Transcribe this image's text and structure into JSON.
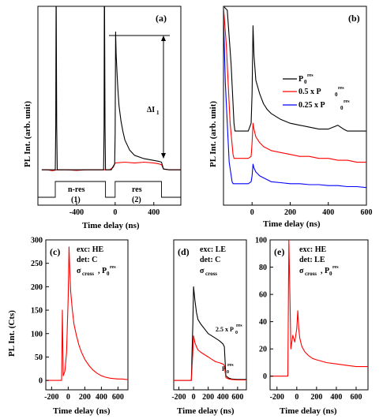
{
  "chart_data": [
    {
      "panel": "(a)",
      "type": "line",
      "xlabel": "Time delay (ns)",
      "ylabel": "PL Int. (arb. unit)",
      "xlim": [
        -800,
        680
      ],
      "ylim": [
        0,
        1
      ],
      "xticks": [
        -400,
        0,
        400
      ],
      "grid": false,
      "annotations": [
        "ΔI",
        "1",
        "n-res",
        "(1)",
        "res",
        "(2)"
      ],
      "series": [
        {
          "color": "#ff0000",
          "x": [
            -760,
            -700,
            -650,
            -600,
            -500,
            -400,
            -300,
            -200,
            -100,
            -60,
            -20,
            0,
            100,
            200,
            300,
            400,
            450,
            480,
            500,
            560,
            600,
            640,
            680
          ],
          "y": [
            0.045,
            0.045,
            0.04,
            0.045,
            0.045,
            0.042,
            0.045,
            0.045,
            0.045,
            0.045,
            0.06,
            0.085,
            0.09,
            0.085,
            0.09,
            0.085,
            0.08,
            0.075,
            0.05,
            0.045,
            0.045,
            0.045,
            0.045
          ]
        },
        {
          "color": "#000000",
          "x": [
            -760,
            -620,
            -615,
            -612,
            -610,
            -605,
            -600,
            -500,
            -400,
            -300,
            -200,
            -120,
            -115,
            -112,
            -110,
            -105,
            -100,
            -40,
            -5,
            0,
            5,
            10,
            20,
            30,
            40,
            60,
            80,
            100,
            150,
            200,
            250,
            300,
            400,
            450,
            480,
            500,
            560,
            600,
            680
          ],
          "y": [
            0.045,
            0.045,
            0.3,
            1.0,
            1.0,
            0.3,
            0.045,
            0.045,
            0.045,
            0.045,
            0.045,
            0.045,
            0.3,
            1.0,
            1.0,
            0.3,
            0.045,
            0.045,
            0.08,
            0.25,
            0.85,
            0.72,
            0.6,
            0.5,
            0.42,
            0.33,
            0.27,
            0.22,
            0.16,
            0.13,
            0.12,
            0.11,
            0.1,
            0.095,
            0.09,
            0.05,
            0.045,
            0.045,
            0.045
          ]
        }
      ],
      "gate": {
        "x": [
          -800,
          -620,
          -620,
          -100,
          -100,
          0,
          0,
          480,
          480,
          680
        ],
        "y": [
          0,
          0,
          1,
          1,
          0,
          0,
          1,
          1,
          0,
          0
        ]
      }
    },
    {
      "panel": "(b)",
      "type": "line",
      "xlabel": "Time delay (ns)",
      "ylabel": "PL Int. (arb. unit)",
      "xlim": [
        -150,
        600
      ],
      "ylim": [
        0,
        1
      ],
      "xticks": [
        0,
        200,
        400,
        600
      ],
      "grid": false,
      "legend_position": "right",
      "legend": [
        {
          "label": "P",
          "sub": "0",
          "sup": "res",
          "color": "#000000"
        },
        {
          "label": "0.5 x  P",
          "sub": "0",
          "sup": "res",
          "color": "#ff0000"
        },
        {
          "label": "0.25 x P",
          "sub": "0",
          "sup": "res",
          "color": "#0000ff"
        }
      ],
      "series": [
        {
          "name": "P0 res",
          "color": "#000000",
          "x": [
            -150,
            -130,
            -110,
            -95,
            -90,
            -60,
            -20,
            -5,
            0,
            5,
            10,
            20,
            40,
            60,
            80,
            100,
            150,
            200,
            250,
            300,
            350,
            400,
            450,
            480,
            500,
            550,
            600
          ],
          "y": [
            1.0,
            0.98,
            0.7,
            0.4,
            0.36,
            0.36,
            0.36,
            0.4,
            0.55,
            0.9,
            0.75,
            0.62,
            0.55,
            0.5,
            0.47,
            0.45,
            0.42,
            0.4,
            0.39,
            0.38,
            0.37,
            0.37,
            0.39,
            0.37,
            0.36,
            0.36,
            0.36
          ]
        },
        {
          "name": "0.5 x P0 res",
          "color": "#ff0000",
          "x": [
            -150,
            -135,
            -115,
            -100,
            -95,
            -60,
            -20,
            -5,
            0,
            5,
            10,
            20,
            40,
            60,
            80,
            100,
            150,
            200,
            250,
            300,
            350,
            400,
            450,
            500,
            550,
            600
          ],
          "y": [
            1.0,
            0.8,
            0.4,
            0.24,
            0.22,
            0.22,
            0.22,
            0.23,
            0.3,
            0.4,
            0.37,
            0.33,
            0.3,
            0.28,
            0.27,
            0.26,
            0.25,
            0.24,
            0.23,
            0.23,
            0.22,
            0.22,
            0.21,
            0.21,
            0.2,
            0.2
          ]
        },
        {
          "name": "0.25 x P0 res",
          "color": "#0000ff",
          "x": [
            -150,
            -140,
            -120,
            -105,
            -100,
            -60,
            -20,
            -5,
            0,
            5,
            10,
            20,
            40,
            60,
            80,
            100,
            150,
            200,
            250,
            300,
            350,
            400,
            450,
            500,
            550,
            600
          ],
          "y": [
            0.95,
            0.6,
            0.2,
            0.1,
            0.09,
            0.09,
            0.09,
            0.1,
            0.13,
            0.19,
            0.17,
            0.15,
            0.13,
            0.12,
            0.11,
            0.1,
            0.095,
            0.09,
            0.09,
            0.085,
            0.085,
            0.08,
            0.08,
            0.075,
            0.075,
            0.07
          ]
        }
      ]
    },
    {
      "panel": "(c)",
      "type": "line",
      "ylabel": "PL Int. (Cts)",
      "xlabel": "Time delay (ns)",
      "xlim": [
        -270,
        720
      ],
      "ylim": [
        -20,
        300
      ],
      "xticks": [
        -200,
        0,
        200,
        400,
        600
      ],
      "yticks": [
        0,
        50,
        100,
        150,
        200,
        250,
        300
      ],
      "grid": false,
      "annotations": [
        "exc: HE",
        "det: C",
        "σ",
        "cross",
        ", P",
        "0",
        "res"
      ],
      "series": [
        {
          "color": "#ff0000",
          "x": [
            -270,
            -200,
            -130,
            -80,
            -70,
            -60,
            -40,
            -20,
            0,
            10,
            20,
            30,
            50,
            70,
            100,
            130,
            160,
            200,
            250,
            300,
            350,
            400,
            450,
            500,
            550,
            600,
            650,
            700,
            720
          ],
          "y": [
            0,
            0,
            0,
            0,
            150,
            10,
            20,
            60,
            180,
            285,
            230,
            190,
            150,
            120,
            95,
            75,
            60,
            45,
            32,
            22,
            15,
            10,
            7,
            5,
            4,
            3,
            3,
            2,
            2
          ]
        }
      ]
    },
    {
      "panel": "(d)",
      "type": "line",
      "xlabel": "Time delay (ns)",
      "xlim": [
        -270,
        720
      ],
      "ylim": [
        -20,
        300
      ],
      "xticks": [
        -200,
        0,
        200,
        400,
        600
      ],
      "grid": false,
      "annotations": [
        "exc: LE",
        "det: C",
        "σ",
        "cross",
        "2.5 x P",
        "0",
        "res",
        "P",
        "0",
        "res"
      ],
      "series": [
        {
          "name": "2.5 x P0 res",
          "color": "#000000",
          "x": [
            -270,
            -100,
            -50,
            -30,
            -20,
            -10,
            0,
            20,
            40,
            60,
            100,
            150,
            200,
            250,
            300,
            350,
            400,
            420,
            440,
            480,
            520,
            600,
            680,
            720
          ],
          "y": [
            0,
            0,
            0,
            0,
            60,
            120,
            200,
            170,
            145,
            130,
            120,
            110,
            100,
            95,
            90,
            85,
            78,
            72,
            10,
            5,
            3,
            2,
            2,
            2
          ]
        },
        {
          "name": "P0 res",
          "color": "#ff0000",
          "x": [
            -270,
            -100,
            -50,
            -30,
            -20,
            -10,
            0,
            20,
            40,
            60,
            100,
            150,
            200,
            250,
            300,
            350,
            400,
            420,
            440,
            480,
            520,
            600,
            680,
            720
          ],
          "y": [
            0,
            0,
            0,
            0,
            30,
            60,
            95,
            80,
            72,
            65,
            60,
            55,
            50,
            45,
            40,
            38,
            35,
            32,
            6,
            3,
            2,
            1,
            1,
            1
          ]
        }
      ]
    },
    {
      "panel": "(e)",
      "type": "line",
      "xlabel": "Time delay (ns)",
      "xlim": [
        -270,
        720
      ],
      "ylim": [
        -10,
        100
      ],
      "xticks": [
        -200,
        0,
        200,
        400,
        600
      ],
      "yticks": [
        0,
        20,
        40,
        60,
        80,
        100
      ],
      "grid": false,
      "annotations": [
        "exc: HE",
        "det: LE",
        "σ",
        "cross",
        ", P",
        "0",
        "res"
      ],
      "series": [
        {
          "color": "#ff0000",
          "x": [
            -270,
            -200,
            -120,
            -90,
            -80,
            -70,
            -60,
            -40,
            -20,
            0,
            10,
            20,
            30,
            50,
            80,
            120,
            160,
            200,
            300,
            400,
            500,
            600,
            700,
            720
          ],
          "y": [
            0,
            0,
            0,
            0,
            100,
            60,
            20,
            30,
            25,
            35,
            48,
            35,
            28,
            22,
            18,
            15,
            13,
            12,
            10,
            9,
            8,
            7,
            7,
            7
          ]
        }
      ]
    }
  ]
}
